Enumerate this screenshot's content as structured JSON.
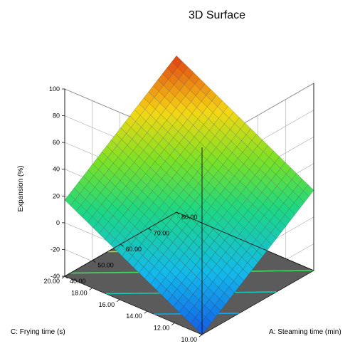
{
  "chart_data": {
    "type": "surface3d",
    "title": "3D Surface",
    "zlabel": "Expansion (%)",
    "xlabel": "A: Steaming time (min)",
    "ylabel": "C: Frying time (s)",
    "x_range": [
      40,
      80
    ],
    "y_range": [
      10,
      20
    ],
    "z_range": [
      -40,
      100
    ],
    "x_ticks": [
      "40.00",
      "50.00",
      "60.00",
      "70.00",
      "80.00"
    ],
    "y_ticks": [
      "10.00",
      "12.00",
      "14.00",
      "16.00",
      "18.00",
      "20.00"
    ],
    "z_ticks": [
      "-40",
      "-20",
      "0",
      "20",
      "40",
      "60",
      "80",
      "100"
    ],
    "surface_corners": [
      {
        "x": 40,
        "y": 10,
        "z": -40
      },
      {
        "x": 80,
        "y": 10,
        "z": 20
      },
      {
        "x": 40,
        "y": 20,
        "z": 17
      },
      {
        "x": 80,
        "y": 20,
        "z": 77
      }
    ],
    "contour_levels": [
      -20,
      0,
      20,
      40
    ],
    "grid": true,
    "colormap": "blue-green-yellow-red",
    "floor_color": "#5b5b5b"
  }
}
